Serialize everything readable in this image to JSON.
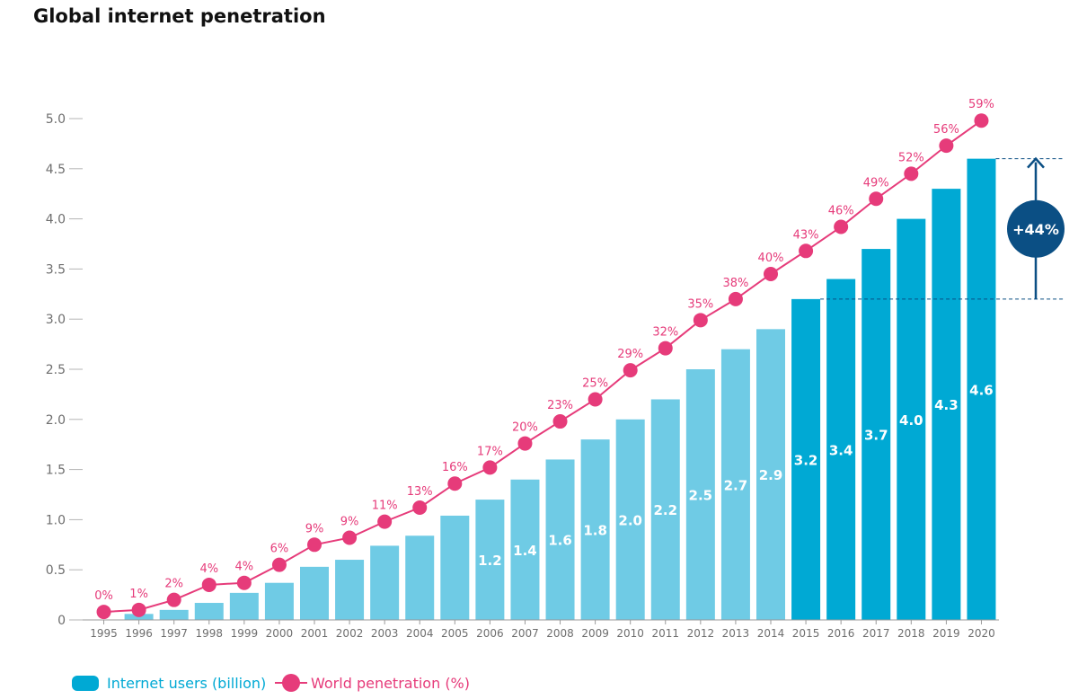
{
  "title": "Global internet penetration",
  "chart_data": {
    "type": "bar",
    "title": "Global internet penetration",
    "xlabel": "",
    "ylabel": "",
    "ylim": [
      0,
      5.0
    ],
    "yticks": [
      "0",
      "0.5",
      "1.0",
      "1.5",
      "2.0",
      "2.5",
      "3.0",
      "3.5",
      "4.0",
      "4.5",
      "5.0"
    ],
    "grid": false,
    "legend_placement": "bottom-left",
    "categories": [
      "1995",
      "1996",
      "1997",
      "1998",
      "1999",
      "2000",
      "2001",
      "2002",
      "2003",
      "2004",
      "2005",
      "2006",
      "2007",
      "2008",
      "2009",
      "2010",
      "2011",
      "2012",
      "2013",
      "2014",
      "2015",
      "2016",
      "2017",
      "2018",
      "2019",
      "2020"
    ],
    "series": [
      {
        "name": "Internet users (billion)",
        "type": "bar",
        "color": "#6fcbe5",
        "highlight_color": "#00a9d4",
        "highlight_from": "2015",
        "values": [
          0.0,
          0.06,
          0.1,
          0.17,
          0.27,
          0.37,
          0.53,
          0.6,
          0.74,
          0.84,
          1.04,
          1.2,
          1.4,
          1.6,
          1.8,
          2.0,
          2.2,
          2.5,
          2.7,
          2.9,
          3.2,
          3.4,
          3.7,
          4.0,
          4.3,
          4.6
        ],
        "labels": [
          "",
          "",
          "",
          "",
          "",
          "",
          "",
          "",
          "",
          "",
          "",
          "1.2",
          "1.4",
          "1.6",
          "1.8",
          "2.0",
          "2.2",
          "2.5",
          "2.7",
          "2.9",
          "3.2",
          "3.4",
          "3.7",
          "4.0",
          "4.3",
          "4.6"
        ]
      },
      {
        "name": "World penetration (%)",
        "type": "line",
        "color": "#e63b7a",
        "values": [
          0.08,
          0.1,
          0.2,
          0.35,
          0.37,
          0.55,
          0.75,
          0.82,
          0.98,
          1.12,
          1.36,
          1.52,
          1.76,
          1.98,
          2.2,
          2.49,
          2.71,
          2.99,
          3.2,
          3.45,
          3.68,
          3.92,
          4.2,
          4.45,
          4.73,
          4.98
        ],
        "labels": [
          "0%",
          "1%",
          "2%",
          "4%",
          "4%",
          "6%",
          "9%",
          "9%",
          "11%",
          "13%",
          "16%",
          "17%",
          "20%",
          "23%",
          "25%",
          "29%",
          "32%",
          "35%",
          "38%",
          "40%",
          "43%",
          "46%",
          "49%",
          "52%",
          "56%",
          "59%"
        ]
      }
    ],
    "annotations": [
      {
        "text": "+44%",
        "from_value": 3.2,
        "to_value": 4.6,
        "color": "#0b4f84"
      }
    ]
  },
  "legend": {
    "users_label": "Internet users (billion)",
    "penetration_label": "World penetration (%)"
  }
}
